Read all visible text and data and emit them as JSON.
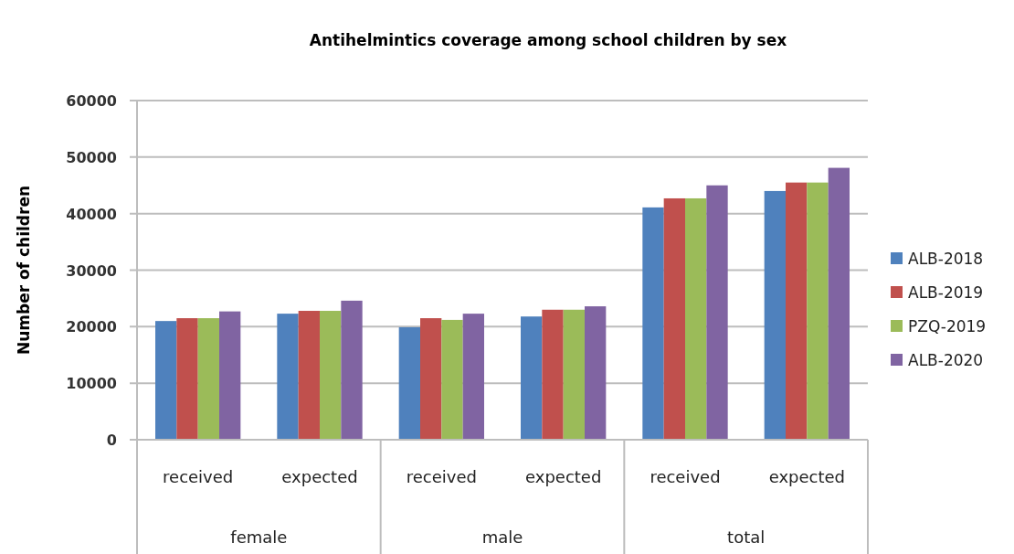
{
  "chart_data": {
    "type": "bar",
    "title": "Antihelmintics coverage among school children by sex",
    "ylabel": "Number of children",
    "categories": [
      "received",
      "expected",
      "received",
      "expected",
      "received",
      "expected"
    ],
    "annotations": [
      "female",
      "male",
      "total"
    ],
    "series": [
      {
        "name": "ALB-2018",
        "color": "#4f81bd",
        "values": [
          21000,
          22300,
          19900,
          21800,
          41100,
          44000
        ]
      },
      {
        "name": "ALB-2019",
        "color": "#c0504d",
        "values": [
          21500,
          22800,
          21500,
          23000,
          42700,
          45500
        ]
      },
      {
        "name": "PZQ-2019",
        "color": "#9bbb59",
        "values": [
          21500,
          22800,
          21200,
          23000,
          42700,
          45500
        ]
      },
      {
        "name": "ALB-2020",
        "color": "#8064a2",
        "values": [
          22700,
          24600,
          22300,
          23600,
          45000,
          48100
        ]
      }
    ],
    "ylim": [
      0,
      60000
    ],
    "yticks": [
      0,
      10000,
      20000,
      30000,
      40000,
      50000,
      60000
    ],
    "grid": "y",
    "legend": "right"
  }
}
